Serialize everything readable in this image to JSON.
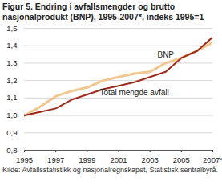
{
  "chart_data": {
    "type": "line",
    "title": "Figur 5. Endring i avfallsmengder og brutto nasjonalprodukt (BNP), 1995-2007*, indeks 1995=1",
    "source": "Kilde: Avfallsstatistikk og nasjonalregnskapet, Statistisk sentralbyrå.",
    "x": [
      1995,
      1996,
      1997,
      1998,
      1999,
      2000,
      2001,
      2002,
      2003,
      2004,
      2005,
      2006,
      2007
    ],
    "series": [
      {
        "name": "BNP",
        "color": "#f2c68f",
        "values": [
          1.0,
          1.05,
          1.11,
          1.14,
          1.16,
          1.2,
          1.22,
          1.24,
          1.25,
          1.3,
          1.33,
          1.37,
          1.42
        ]
      },
      {
        "name": "Total mengde avfall",
        "color": "#9e2a1c",
        "values": [
          1.0,
          1.02,
          1.04,
          1.09,
          1.12,
          1.15,
          1.17,
          1.19,
          1.22,
          1.25,
          1.33,
          1.37,
          1.45
        ]
      }
    ],
    "xlim": [
      1995,
      2007
    ],
    "xticks": [
      1995,
      1997,
      1999,
      2001,
      2003,
      2005,
      {
        "value": 2007,
        "label": "2007*"
      }
    ],
    "ylim": [
      0.8,
      1.5
    ],
    "yticks": [
      {
        "value": 0.8,
        "label": "0,8"
      },
      {
        "value": 0.9,
        "label": "0,9"
      },
      {
        "value": 1.0,
        "label": "1,0"
      },
      {
        "value": 1.1,
        "label": "1,1"
      },
      {
        "value": 1.2,
        "label": "1,2"
      },
      {
        "value": 1.3,
        "label": "1,3"
      },
      {
        "value": 1.4,
        "label": "1,4"
      },
      {
        "value": 1.5,
        "label": "1,5"
      }
    ],
    "grid": true
  }
}
